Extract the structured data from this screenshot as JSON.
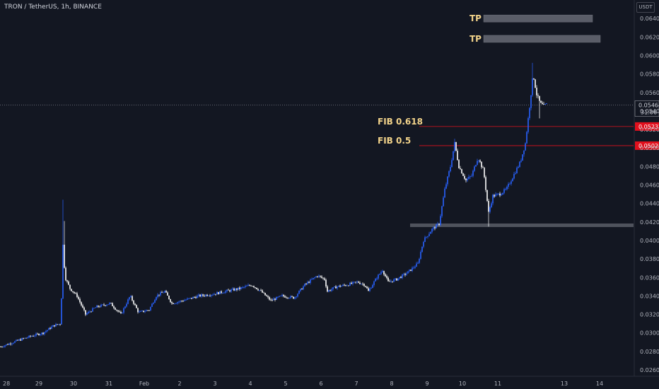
{
  "header": {
    "title": "TRON / TetherUS, 1h, BINANCE",
    "unit": "USDT"
  },
  "colors": {
    "background": "#131722",
    "candle_up": "#2962ff",
    "candle_down": "#ffffff",
    "fib_line": "#e0101d",
    "zone": "#787b86",
    "annotation": "#f2d38a"
  },
  "chart_data": {
    "type": "candlestick",
    "title": "TRON / TetherUS, 1h, BINANCE",
    "xlabel": "",
    "ylabel": "",
    "x_ticks": [
      "28",
      "29",
      "30",
      "31",
      "Feb",
      "2",
      "3",
      "4",
      "5",
      "6",
      "7",
      "8",
      "9",
      "10",
      "11",
      "13",
      "14"
    ],
    "y_ticks": [
      "0.06400",
      "0.06200",
      "0.06000",
      "0.05800",
      "0.05600",
      "0.05400",
      "0.05200",
      "0.05000",
      "0.04800",
      "0.04600",
      "0.04400",
      "0.04200",
      "0.04000",
      "0.03800",
      "0.03600",
      "0.03400",
      "0.03200",
      "0.03000",
      "0.02800",
      "0.02600"
    ],
    "ylim": [
      0.0258,
      0.0656
    ],
    "current_price": {
      "value": 0.05464,
      "label": "0.05464",
      "countdown": "31:06"
    },
    "levels": [
      {
        "name": "FIB 0.618",
        "value": 0.05232,
        "label": "0.05232"
      },
      {
        "name": "FIB 0.5",
        "value": 0.05025,
        "label": "0.05025"
      }
    ],
    "targets": [
      {
        "name": "TP",
        "value": 0.064
      },
      {
        "name": "TP",
        "value": 0.0618
      }
    ],
    "support_zone": {
      "value": 0.0416
    },
    "price_path": [
      [
        0,
        0.0285
      ],
      [
        25,
        0.0292
      ],
      [
        45,
        0.0297
      ],
      [
        60,
        0.03
      ],
      [
        75,
        0.0308
      ],
      [
        85,
        0.031
      ],
      [
        88,
        0.0395
      ],
      [
        91,
        0.036
      ],
      [
        98,
        0.0348
      ],
      [
        108,
        0.034
      ],
      [
        120,
        0.032
      ],
      [
        135,
        0.0328
      ],
      [
        155,
        0.0332
      ],
      [
        170,
        0.032
      ],
      [
        183,
        0.034
      ],
      [
        195,
        0.0322
      ],
      [
        210,
        0.0325
      ],
      [
        220,
        0.034
      ],
      [
        232,
        0.0345
      ],
      [
        242,
        0.0332
      ],
      [
        258,
        0.0335
      ],
      [
        280,
        0.034
      ],
      [
        300,
        0.0342
      ],
      [
        318,
        0.0345
      ],
      [
        338,
        0.0348
      ],
      [
        355,
        0.0352
      ],
      [
        368,
        0.0345
      ],
      [
        382,
        0.0335
      ],
      [
        398,
        0.034
      ],
      [
        415,
        0.0338
      ],
      [
        430,
        0.0352
      ],
      [
        448,
        0.0362
      ],
      [
        458,
        0.0358
      ],
      [
        462,
        0.0345
      ],
      [
        475,
        0.035
      ],
      [
        490,
        0.0352
      ],
      [
        505,
        0.0355
      ],
      [
        515,
        0.0352
      ],
      [
        520,
        0.0345
      ],
      [
        532,
        0.036
      ],
      [
        540,
        0.0368
      ],
      [
        548,
        0.0355
      ],
      [
        560,
        0.0358
      ],
      [
        575,
        0.0365
      ],
      [
        590,
        0.0375
      ],
      [
        598,
        0.04
      ],
      [
        610,
        0.0412
      ],
      [
        620,
        0.0418
      ],
      [
        628,
        0.0455
      ],
      [
        636,
        0.048
      ],
      [
        642,
        0.0505
      ],
      [
        648,
        0.048
      ],
      [
        658,
        0.0465
      ],
      [
        666,
        0.047
      ],
      [
        675,
        0.049
      ],
      [
        683,
        0.0475
      ],
      [
        690,
        0.043
      ],
      [
        696,
        0.0448
      ],
      [
        705,
        0.045
      ],
      [
        715,
        0.0455
      ],
      [
        725,
        0.047
      ],
      [
        735,
        0.0485
      ],
      [
        742,
        0.0505
      ],
      [
        748,
        0.0545
      ],
      [
        753,
        0.058
      ],
      [
        758,
        0.0558
      ],
      [
        763,
        0.0548
      ],
      [
        768,
        0.0545
      ],
      [
        772,
        0.0547
      ]
    ]
  }
}
